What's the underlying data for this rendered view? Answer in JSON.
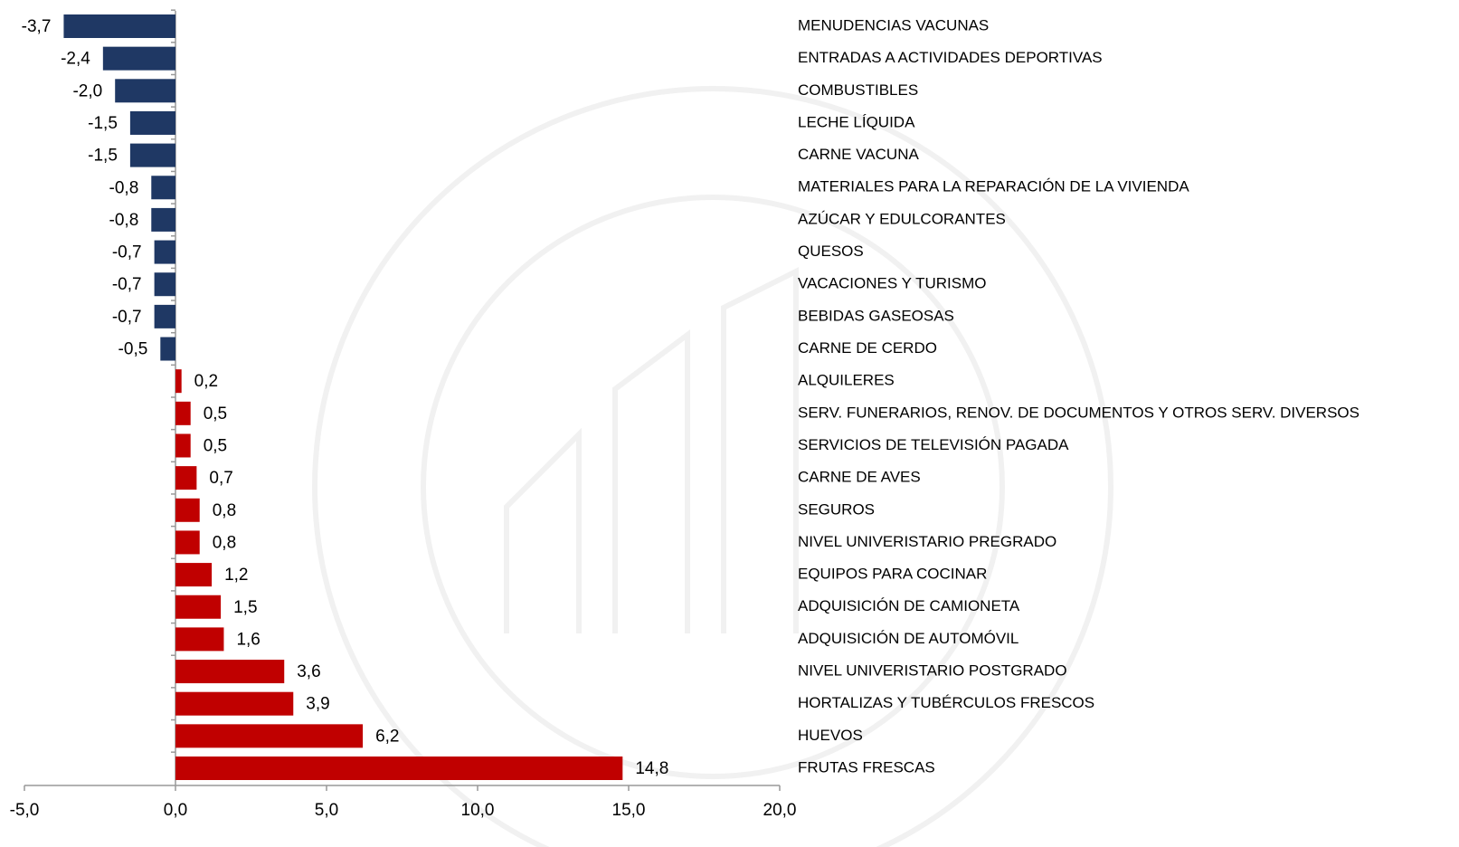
{
  "chart_data": {
    "type": "bar",
    "orientation": "horizontal",
    "categories": [
      "MENUDENCIAS VACUNAS",
      "ENTRADAS A ACTIVIDADES DEPORTIVAS",
      "COMBUSTIBLES",
      "LECHE LÍQUIDA",
      "CARNE VACUNA",
      "MATERIALES PARA LA REPARACIÓN DE LA VIVIENDA",
      "AZÚCAR Y EDULCORANTES",
      "QUESOS",
      "VACACIONES Y TURISMO",
      "BEBIDAS GASEOSAS",
      "CARNE DE CERDO",
      "ALQUILERES",
      "SERV. FUNERARIOS, RENOV. DE DOCUMENTOS Y OTROS SERV. DIVERSOS",
      "SERVICIOS DE TELEVISIÓN PAGADA",
      "CARNE DE AVES",
      "SEGUROS",
      "NIVEL UNIVERISTARIO PREGRADO",
      "EQUIPOS PARA COCINAR",
      "ADQUISICIÓN DE CAMIONETA",
      "ADQUISICIÓN DE AUTOMÓVIL",
      "NIVEL UNIVERISTARIO POSTGRADO",
      "HORTALIZAS Y TUBÉRCULOS FRESCOS",
      "HUEVOS",
      "FRUTAS FRESCAS"
    ],
    "values": [
      -3.7,
      -2.4,
      -2.0,
      -1.5,
      -1.5,
      -0.8,
      -0.8,
      -0.7,
      -0.7,
      -0.7,
      -0.5,
      0.2,
      0.5,
      0.5,
      0.7,
      0.8,
      0.8,
      1.2,
      1.5,
      1.6,
      3.6,
      3.9,
      6.2,
      14.8
    ],
    "value_labels": [
      "-3,7",
      "-2,4",
      "-2,0",
      "-1,5",
      "-1,5",
      "-0,8",
      "-0,8",
      "-0,7",
      "-0,7",
      "-0,7",
      "-0,5",
      "0,2",
      "0,5",
      "0,5",
      "0,7",
      "0,8",
      "0,8",
      "1,2",
      "1,5",
      "1,6",
      "3,6",
      "3,9",
      "6,2",
      "14,8"
    ],
    "negative_color": "#1f3864",
    "positive_color": "#c00000",
    "xlim": [
      -5,
      20
    ],
    "xticks": [
      {
        "value": -5,
        "label": "-5,0"
      },
      {
        "value": 0,
        "label": "0,0"
      },
      {
        "value": 5,
        "label": "5,0"
      },
      {
        "value": 10,
        "label": "10,0"
      },
      {
        "value": 15,
        "label": "15,0"
      },
      {
        "value": 20,
        "label": "20,0"
      }
    ]
  }
}
